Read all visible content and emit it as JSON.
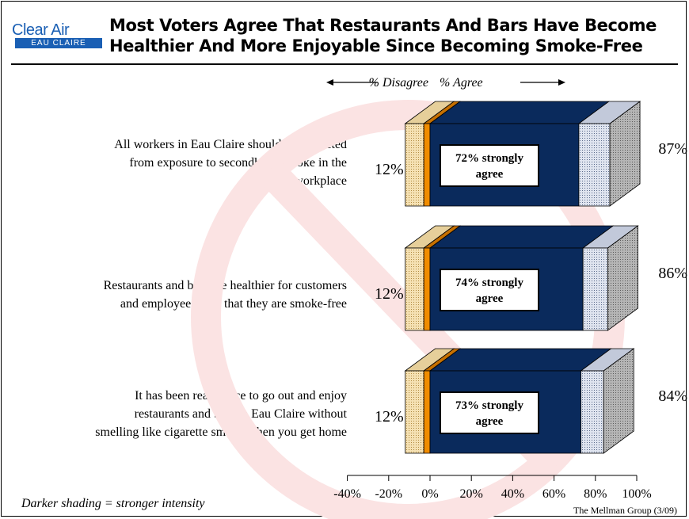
{
  "logo": {
    "top": "Clear Air",
    "bottom": "EAU CLAIRE"
  },
  "title_lines": [
    "Most Voters Agree That Restaurants And Bars Have Become",
    "Healthier And More Enjoyable Since Becoming Smoke-Free"
  ],
  "footnote": "Darker shading = stronger intensity",
  "source": "The Mellman Group (3/09)",
  "colors": {
    "strongly_agree": "#0a2a5c",
    "somewhat_agree": "#dfe4ef",
    "strongly_disagree": "#f08c00",
    "somewhat_disagree": "#f5e1b3",
    "no_answer": "#8c8c8c",
    "watermark": "#fbe3e3"
  },
  "chart_data": {
    "type": "bar",
    "orientation": "horizontal",
    "stacked": true,
    "style": "3d",
    "header": {
      "disagree": "% Disagree",
      "agree": "% Agree"
    },
    "categories": [
      "All workers in Eau Claire should be protected from exposure to secondhand smoke in the workplace",
      "Restaurants and bars are healthier for customers and employees now that they are smoke-free",
      "It has been really nice to go out and enjoy restaurants and bars in Eau Claire without smelling like cigarette smoke when you get home"
    ],
    "statement_lines": [
      [
        "All workers in Eau Claire should be protected",
        "from exposure to secondhand smoke in the",
        "workplace"
      ],
      [
        "Restaurants and bars are healthier for customers",
        "and employees now that they are smoke-free"
      ],
      [
        "It has been really nice to go out and enjoy",
        "restaurants and bars in Eau Claire without",
        "smelling like cigarette smoke when you get home"
      ]
    ],
    "total_disagree": [
      12,
      12,
      12
    ],
    "strongly_disagree": [
      -3,
      -3,
      -3
    ],
    "total_agree": [
      87,
      86,
      84
    ],
    "strongly_agree": [
      72,
      74,
      73
    ],
    "disagree_labels": [
      "12%",
      "12%",
      "12%"
    ],
    "agree_labels": [
      "87%",
      "86%",
      "84%"
    ],
    "strongly_labels": [
      [
        "72% strongly",
        "agree"
      ],
      [
        "74% strongly",
        "agree"
      ],
      [
        "73% strongly",
        "agree"
      ]
    ],
    "x_ticks": [
      -40,
      -20,
      0,
      20,
      40,
      60,
      80,
      100
    ],
    "x_tick_labels": [
      "-40%",
      "-20%",
      "0%",
      "20%",
      "40%",
      "60%",
      "80%",
      "100%"
    ],
    "xlim": [
      -40,
      100
    ]
  }
}
